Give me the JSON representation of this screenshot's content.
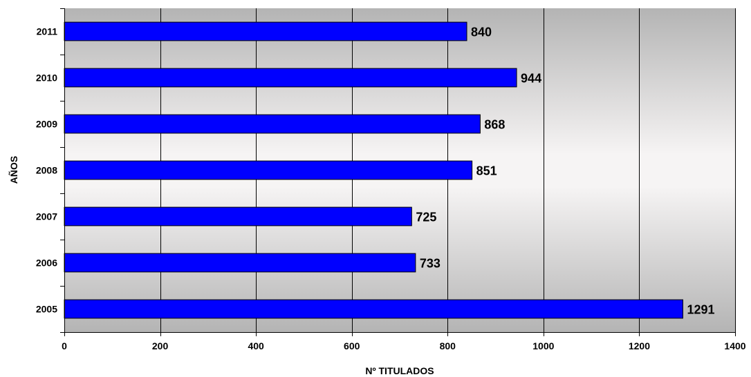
{
  "chart_data": {
    "type": "bar",
    "orientation": "horizontal",
    "title": "",
    "xlabel": "Nº TITULADOS",
    "ylabel": "AÑOS",
    "categories": [
      "2011",
      "2010",
      "2009",
      "2008",
      "2007",
      "2006",
      "2005"
    ],
    "values": [
      840,
      944,
      868,
      851,
      725,
      733,
      1291
    ],
    "xlim": [
      0,
      1400
    ],
    "xticks": [
      0,
      200,
      400,
      600,
      800,
      1000,
      1200,
      1400
    ],
    "grid": "vertical",
    "legend": "none",
    "bar_color": "#0000ff",
    "plot_background": "gradient-gray",
    "show_data_labels": true
  }
}
